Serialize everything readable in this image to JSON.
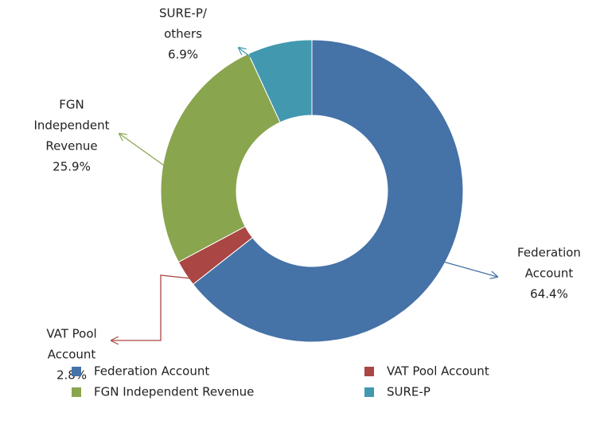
{
  "chart_data": {
    "type": "donut",
    "categories": [
      "Federation Account",
      "VAT Pool Account",
      "FGN Independent Revenue",
      "SURE-P"
    ],
    "values": [
      64.4,
      2.8,
      25.9,
      6.9
    ],
    "value_labels": [
      "64.4%",
      "2.8%",
      "25.9%",
      "6.9%"
    ],
    "label_lines": [
      [
        "Federation",
        "Account"
      ],
      [
        "VAT Pool",
        "Account"
      ],
      [
        "FGN",
        "Independent",
        "Revenue"
      ],
      [
        "SURE-P/",
        "others"
      ]
    ],
    "colors": [
      "#4572a7",
      "#aa4643",
      "#89a54e",
      "#4198af"
    ]
  }
}
